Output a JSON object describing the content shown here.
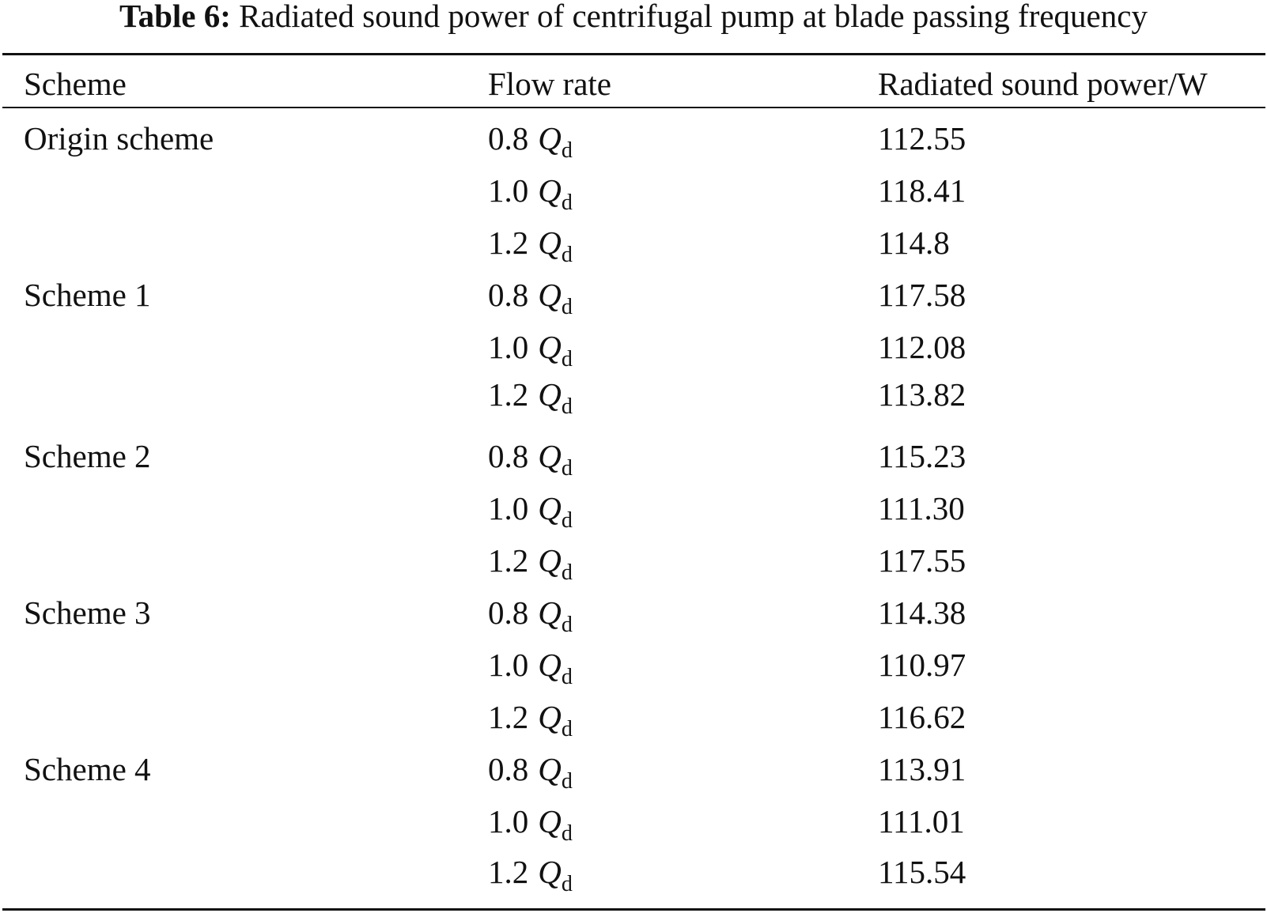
{
  "caption": {
    "label": "Table 6:",
    "text": "Radiated sound power of centrifugal pump at blade passing frequency"
  },
  "header": {
    "scheme": "Scheme",
    "flow_rate": "Flow rate",
    "power": "Radiated sound power/W"
  },
  "flow_symbol": "Q",
  "flow_subscript": "d",
  "rows": [
    {
      "scheme": "Origin scheme",
      "flow": "0.8",
      "power": "112.55"
    },
    {
      "scheme": "",
      "flow": "1.0",
      "power": "118.41"
    },
    {
      "scheme": "",
      "flow": "1.2",
      "power": "114.8"
    },
    {
      "scheme": "Scheme 1",
      "flow": "0.8",
      "power": "117.58"
    },
    {
      "scheme": "",
      "flow": "1.0",
      "power": "112.08"
    },
    {
      "scheme": "",
      "flow": "1.2",
      "power": "113.82"
    },
    {
      "scheme": "Scheme 2",
      "flow": "0.8",
      "power": "115.23"
    },
    {
      "scheme": "",
      "flow": "1.0",
      "power": "111.30"
    },
    {
      "scheme": "",
      "flow": "1.2",
      "power": "117.55"
    },
    {
      "scheme": "Scheme 3",
      "flow": "0.8",
      "power": "114.38"
    },
    {
      "scheme": "",
      "flow": "1.0",
      "power": "110.97"
    },
    {
      "scheme": "",
      "flow": "1.2",
      "power": "116.62"
    },
    {
      "scheme": "Scheme 4",
      "flow": "0.8",
      "power": "113.91"
    },
    {
      "scheme": "",
      "flow": "1.0",
      "power": "111.01"
    },
    {
      "scheme": "",
      "flow": "1.2",
      "power": "115.54"
    }
  ]
}
